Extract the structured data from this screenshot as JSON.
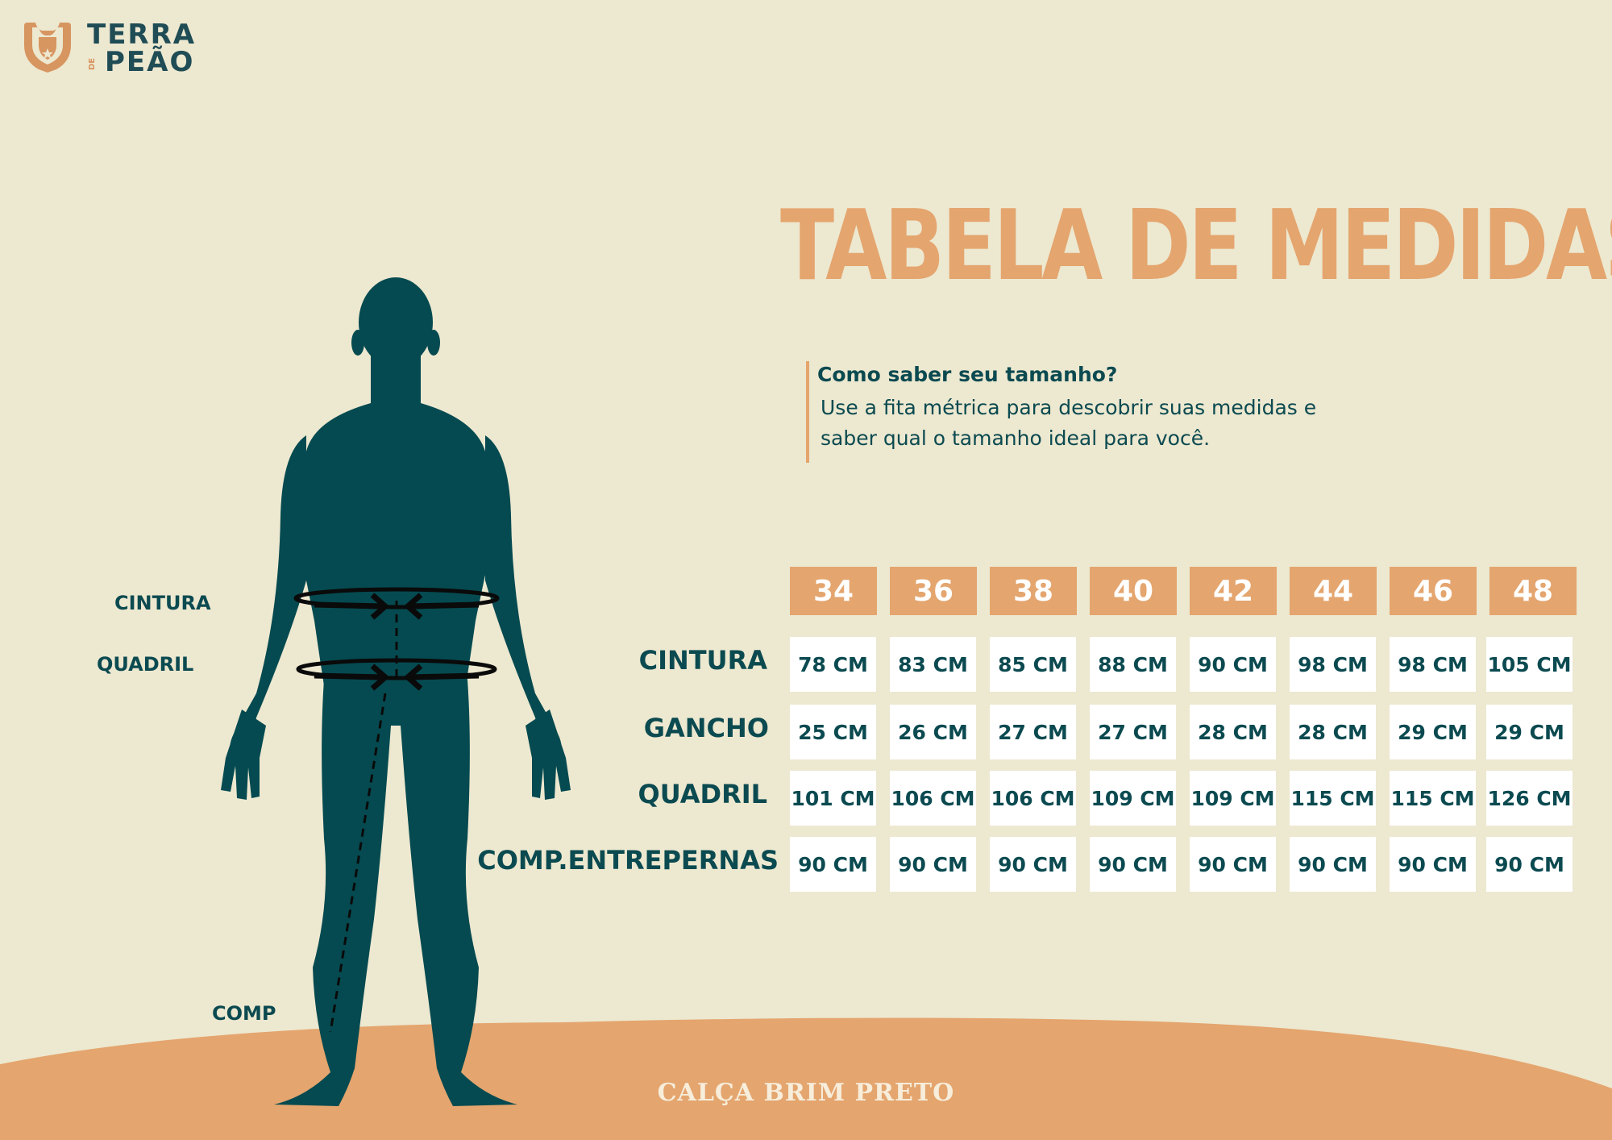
{
  "logo": {
    "line1": "TERRA",
    "small": "DE",
    "line2": "PEÃO",
    "icon": "longhorn-logo-icon"
  },
  "title": "TABELA DE MEDIDAS",
  "info": {
    "heading": "Como saber seu tamanho?",
    "body": "Use a fita métrica para descobrir suas medidas e saber qual o tamanho ideal para você."
  },
  "body_labels": {
    "cintura": "CINTURA",
    "quadril": "QUADRIL",
    "comp": "COMP"
  },
  "table": {
    "sizes": [
      "34",
      "36",
      "38",
      "40",
      "42",
      "44",
      "46",
      "48"
    ],
    "rows": [
      {
        "label": "CINTURA",
        "values": [
          "78 CM",
          "83 CM",
          "85 CM",
          "88 CM",
          "90 CM",
          "98 CM",
          "98 CM",
          "105 CM"
        ]
      },
      {
        "label": "GANCHO",
        "values": [
          "25 CM",
          "26 CM",
          "27 CM",
          "27 CM",
          "28 CM",
          "28 CM",
          "29 CM",
          "29 CM"
        ]
      },
      {
        "label": "QUADRIL",
        "values": [
          "101 CM",
          "106 CM",
          "106 CM",
          "109 CM",
          "109 CM",
          "115 CM",
          "115 CM",
          "126 CM"
        ]
      },
      {
        "label": "COMP.ENTREPERNAS",
        "values": [
          "90 CM",
          "90 CM",
          "90 CM",
          "90 CM",
          "90 CM",
          "90 CM",
          "90 CM",
          "90 CM"
        ]
      }
    ]
  },
  "product_name": "CALÇA BRIM PRETO",
  "colors": {
    "background": "#EDE8D0",
    "accent": "#E4A56E",
    "text": "#0B4A50",
    "figure": "#054A50"
  }
}
